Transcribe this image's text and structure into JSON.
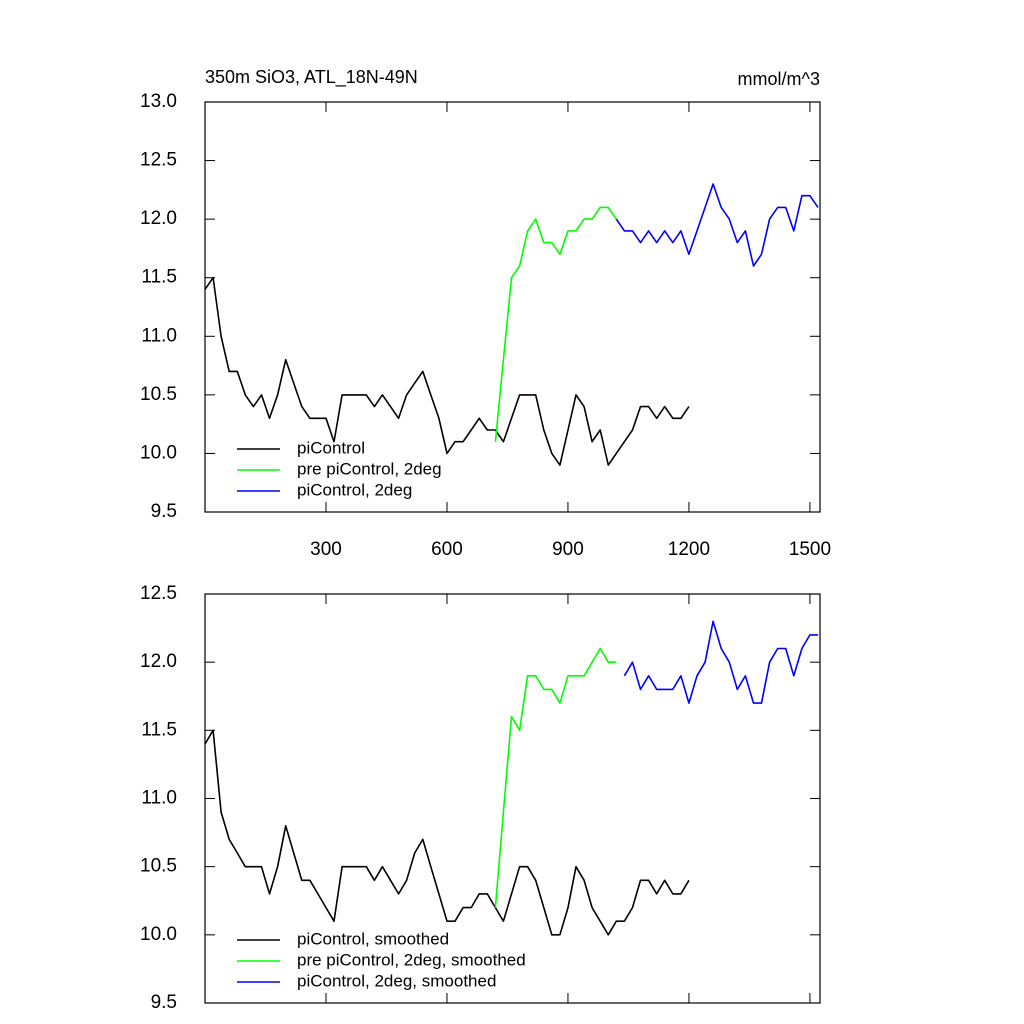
{
  "chart_data": [
    {
      "type": "line",
      "title": "350m SiO3, ATL_18N-49N",
      "units": "mmol/m^3",
      "x": [
        0,
        20,
        40,
        60,
        80,
        100,
        120,
        140,
        160,
        180,
        200,
        220,
        240,
        260,
        280,
        300,
        320,
        340,
        360,
        380,
        400,
        420,
        440,
        460,
        480,
        500,
        520,
        540,
        560,
        580,
        600,
        620,
        640,
        660,
        680,
        700,
        720,
        740,
        760,
        780,
        800,
        820,
        840,
        860,
        880,
        900,
        920,
        940,
        960,
        980,
        1000,
        1020,
        1040,
        1060,
        1080,
        1100,
        1120,
        1140,
        1160,
        1180,
        1200,
        1220,
        1240,
        1260,
        1280,
        1300,
        1320,
        1340,
        1360,
        1380,
        1400,
        1420,
        1440,
        1460,
        1480,
        1500,
        1520
      ],
      "series": [
        {
          "name": "piControl",
          "color": "#000000",
          "values": [
            11.4,
            11.5,
            11.0,
            10.7,
            10.7,
            10.5,
            10.4,
            10.5,
            10.3,
            10.5,
            10.8,
            10.6,
            10.4,
            10.3,
            10.3,
            10.3,
            10.1,
            10.5,
            10.5,
            10.5,
            10.5,
            10.4,
            10.5,
            10.4,
            10.3,
            10.5,
            10.6,
            10.7,
            10.5,
            10.3,
            10.0,
            10.1,
            10.1,
            10.2,
            10.3,
            10.2,
            10.2,
            10.1,
            10.3,
            10.5,
            10.5,
            10.5,
            10.2,
            10.0,
            9.9,
            10.2,
            10.5,
            10.4,
            10.1,
            10.2,
            9.9,
            10.0,
            10.1,
            10.2,
            10.4,
            10.4,
            10.3,
            10.4,
            10.3,
            10.3,
            10.4,
            null,
            null,
            null,
            null,
            null,
            null,
            null,
            null,
            null,
            null,
            null,
            null,
            null,
            null,
            null,
            null
          ]
        },
        {
          "name": "pre piControl, 2deg",
          "color": "#00ff00",
          "values": [
            null,
            null,
            null,
            null,
            null,
            null,
            null,
            null,
            null,
            null,
            null,
            null,
            null,
            null,
            null,
            null,
            null,
            null,
            null,
            null,
            null,
            null,
            null,
            null,
            null,
            null,
            null,
            null,
            null,
            null,
            null,
            null,
            null,
            null,
            null,
            null,
            10.1,
            10.8,
            11.5,
            11.6,
            11.9,
            12.0,
            11.8,
            11.8,
            11.7,
            11.9,
            11.9,
            12.0,
            12.0,
            12.1,
            12.1,
            12.0,
            null,
            null,
            null,
            null,
            null,
            null,
            null,
            null,
            null,
            null,
            null,
            null,
            null,
            null,
            null,
            null,
            null,
            null,
            null,
            null,
            null,
            null,
            null,
            null,
            null
          ]
        },
        {
          "name": "piControl, 2deg",
          "color": "#0000ff",
          "values": [
            null,
            null,
            null,
            null,
            null,
            null,
            null,
            null,
            null,
            null,
            null,
            null,
            null,
            null,
            null,
            null,
            null,
            null,
            null,
            null,
            null,
            null,
            null,
            null,
            null,
            null,
            null,
            null,
            null,
            null,
            null,
            null,
            null,
            null,
            null,
            null,
            null,
            null,
            null,
            null,
            null,
            null,
            null,
            null,
            null,
            null,
            null,
            null,
            null,
            null,
            null,
            12.0,
            11.9,
            11.9,
            11.8,
            11.9,
            11.8,
            11.9,
            11.8,
            11.9,
            11.7,
            11.9,
            12.1,
            12.3,
            12.1,
            12.0,
            11.8,
            11.9,
            11.6,
            11.7,
            12.0,
            12.1,
            12.1,
            11.9,
            12.2,
            12.2,
            12.1
          ]
        }
      ],
      "xlim": [
        0,
        1525
      ],
      "ylim": [
        9.5,
        13.0
      ],
      "xticks": [
        300,
        600,
        900,
        1200,
        1500
      ],
      "xtick_labels": true,
      "yticks": [
        9.5,
        {
          "value": 10,
          "label": "10.0"
        },
        10.5,
        {
          "value": 11,
          "label": "11.0"
        },
        11.5,
        {
          "value": 12,
          "label": "12.0"
        },
        12.5,
        {
          "value": 13,
          "label": "13.0"
        }
      ],
      "legend": "lower-left",
      "grid": false
    },
    {
      "type": "line",
      "x": [
        0,
        20,
        40,
        60,
        80,
        100,
        120,
        140,
        160,
        180,
        200,
        220,
        240,
        260,
        280,
        300,
        320,
        340,
        360,
        380,
        400,
        420,
        440,
        460,
        480,
        500,
        520,
        540,
        560,
        580,
        600,
        620,
        640,
        660,
        680,
        700,
        720,
        740,
        760,
        780,
        800,
        820,
        840,
        860,
        880,
        900,
        920,
        940,
        960,
        980,
        1000,
        1020,
        1040,
        1060,
        1080,
        1100,
        1120,
        1140,
        1160,
        1180,
        1200,
        1220,
        1240,
        1260,
        1280,
        1300,
        1320,
        1340,
        1360,
        1380,
        1400,
        1420,
        1440,
        1460,
        1480,
        1500,
        1520
      ],
      "series": [
        {
          "name": "piControl, smoothed",
          "color": "#000000",
          "values": [
            11.4,
            11.5,
            10.9,
            10.7,
            10.6,
            10.5,
            10.5,
            10.5,
            10.3,
            10.5,
            10.8,
            10.6,
            10.4,
            10.4,
            10.3,
            10.2,
            10.1,
            10.5,
            10.5,
            10.5,
            10.5,
            10.4,
            10.5,
            10.4,
            10.3,
            10.4,
            10.6,
            10.7,
            10.5,
            10.3,
            10.1,
            10.1,
            10.2,
            10.2,
            10.3,
            10.3,
            10.2,
            10.1,
            10.3,
            10.5,
            10.5,
            10.4,
            10.2,
            10.0,
            10.0,
            10.2,
            10.5,
            10.4,
            10.2,
            10.1,
            10.0,
            10.1,
            10.1,
            10.2,
            10.4,
            10.4,
            10.3,
            10.4,
            10.3,
            10.3,
            10.4,
            null,
            null,
            null,
            null,
            null,
            null,
            null,
            null,
            null,
            null,
            null,
            null,
            null,
            null,
            null,
            null
          ]
        },
        {
          "name": "pre piControl, 2deg, smoothed",
          "color": "#00ff00",
          "values": [
            null,
            null,
            null,
            null,
            null,
            null,
            null,
            null,
            null,
            null,
            null,
            null,
            null,
            null,
            null,
            null,
            null,
            null,
            null,
            null,
            null,
            null,
            null,
            null,
            null,
            null,
            null,
            null,
            null,
            null,
            null,
            null,
            null,
            null,
            null,
            null,
            10.2,
            10.9,
            11.6,
            11.5,
            11.9,
            11.9,
            11.8,
            11.8,
            11.7,
            11.9,
            11.9,
            11.9,
            12.0,
            12.1,
            12.0,
            12.0,
            null,
            null,
            null,
            null,
            null,
            null,
            null,
            null,
            null,
            null,
            null,
            null,
            null,
            null,
            null,
            null,
            null,
            null,
            null,
            null,
            null,
            null,
            null,
            null,
            null
          ]
        },
        {
          "name": "piControl, 2deg, smoothed",
          "color": "#0000ff",
          "values": [
            null,
            null,
            null,
            null,
            null,
            null,
            null,
            null,
            null,
            null,
            null,
            null,
            null,
            null,
            null,
            null,
            null,
            null,
            null,
            null,
            null,
            null,
            null,
            null,
            null,
            null,
            null,
            null,
            null,
            null,
            null,
            null,
            null,
            null,
            null,
            null,
            null,
            null,
            null,
            null,
            null,
            null,
            null,
            null,
            null,
            null,
            null,
            null,
            null,
            null,
            null,
            null,
            11.9,
            12.0,
            11.8,
            11.9,
            11.8,
            11.8,
            11.8,
            11.9,
            11.7,
            11.9,
            12.0,
            12.3,
            12.1,
            12.0,
            11.8,
            11.9,
            11.7,
            11.7,
            12.0,
            12.1,
            12.1,
            11.9,
            12.1,
            12.2,
            12.2
          ]
        }
      ],
      "xlim": [
        0,
        1525
      ],
      "ylim": [
        9.5,
        12.5
      ],
      "xticks": [
        300,
        600,
        900,
        1200,
        1500
      ],
      "xtick_labels": false,
      "yticks": [
        9.5,
        {
          "value": 10,
          "label": "10.0"
        },
        10.5,
        {
          "value": 11,
          "label": "11.0"
        },
        11.5,
        {
          "value": 12,
          "label": "12.0"
        },
        12.5
      ],
      "legend": "lower-left",
      "grid": false
    }
  ]
}
